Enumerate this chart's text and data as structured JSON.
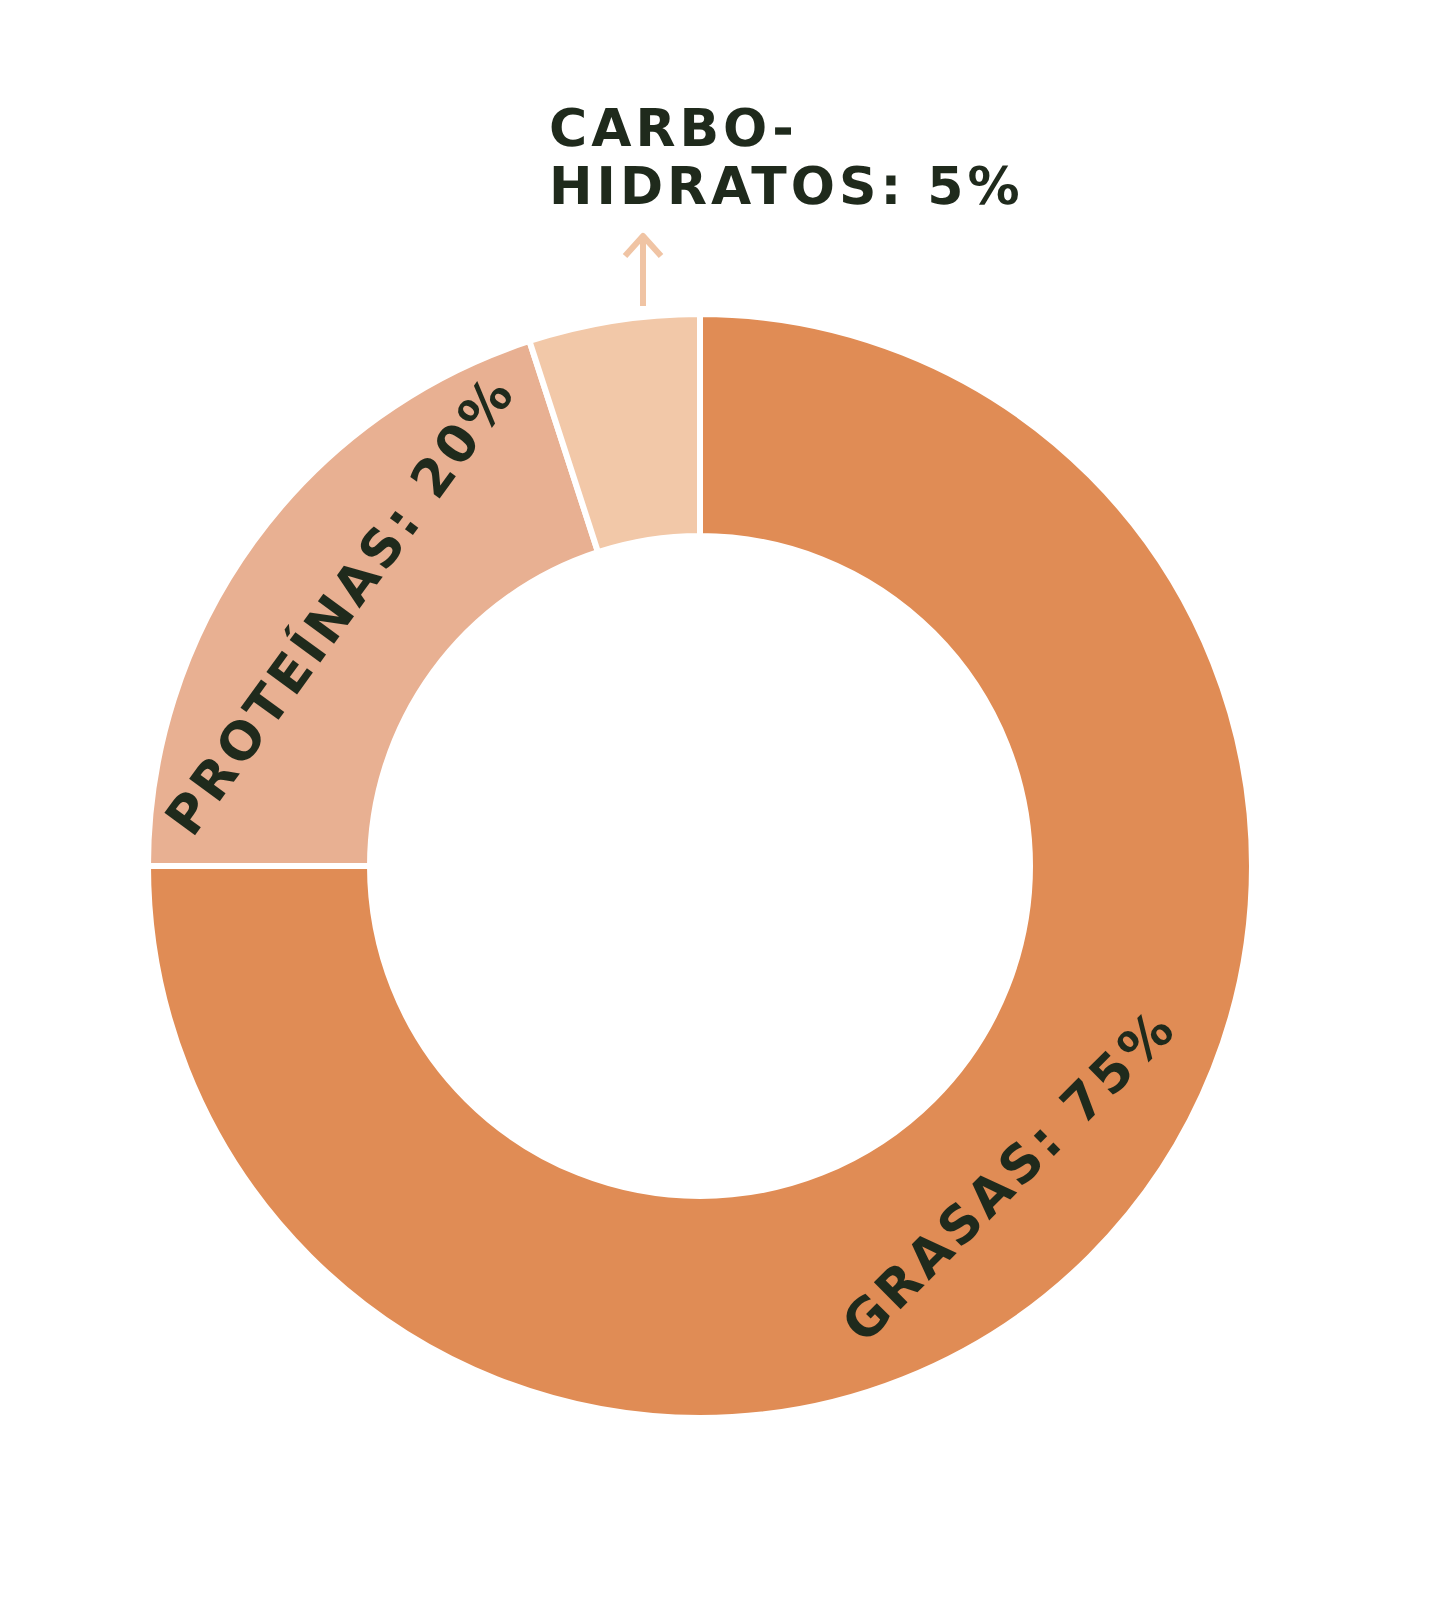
{
  "chart_data": {
    "type": "donut",
    "categories": [
      "GRASAS",
      "PROTEÍNAS",
      "CARBO-HIDRATOS"
    ],
    "values": [
      75,
      20,
      5
    ],
    "value_labels": [
      "75%",
      "20%",
      "5%"
    ],
    "colors": [
      "#e08c55",
      "#e8b092",
      "#f2c8a8"
    ]
  }
}
